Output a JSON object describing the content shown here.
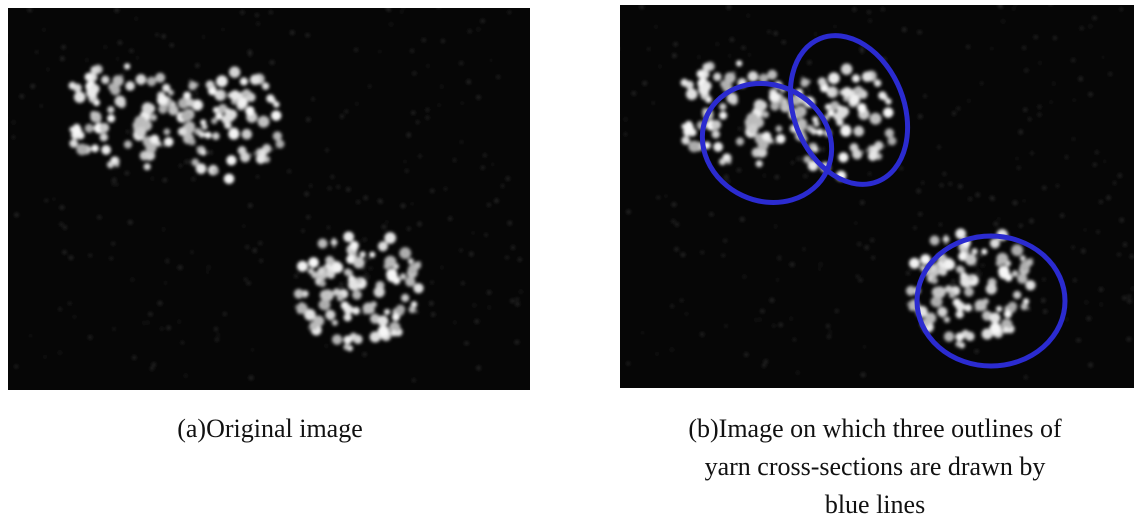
{
  "figures": [
    {
      "caption": [
        "(a)Original image"
      ]
    },
    {
      "caption": [
        "(b)Image on which three outlines of",
        "yarn cross-sections are drawn by",
        "blue lines"
      ]
    }
  ]
}
